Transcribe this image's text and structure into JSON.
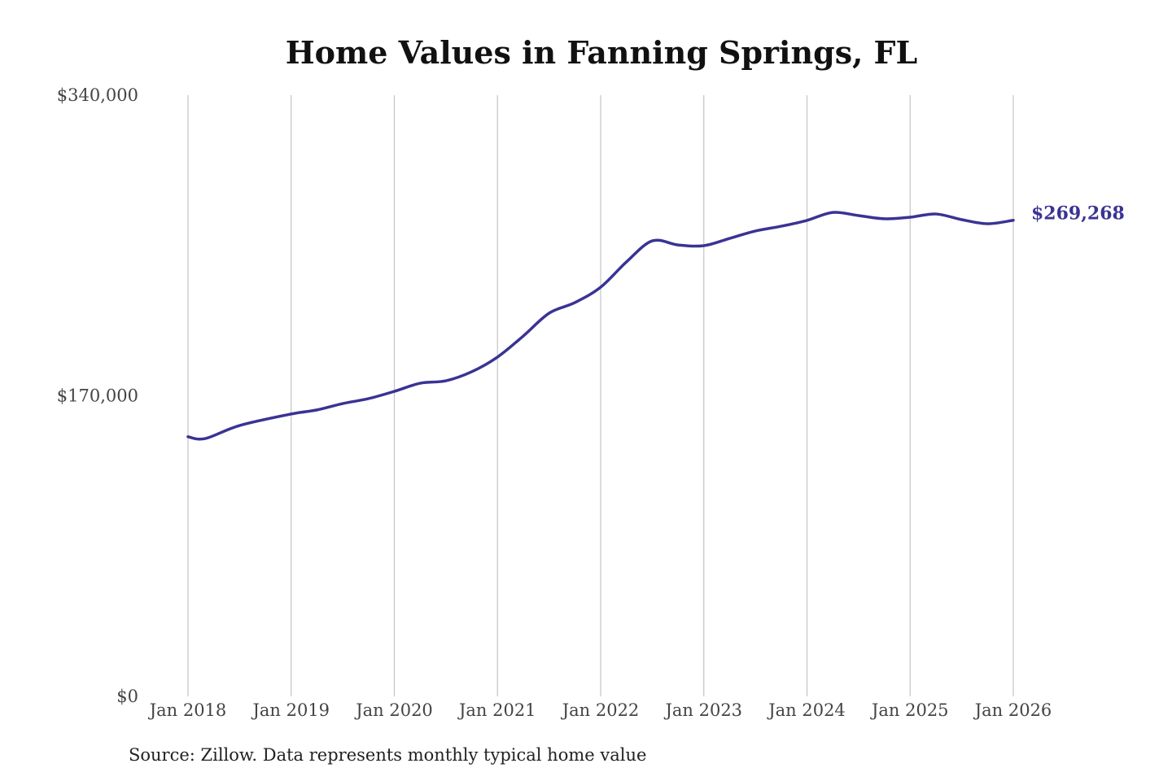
{
  "chart_data": {
    "type": "line",
    "title": "Home Values in Fanning Springs, FL",
    "xlabel": "",
    "ylabel": "",
    "ylim": [
      0,
      340000
    ],
    "yticks": [
      "$0",
      "$170,000",
      "$340,000"
    ],
    "ytick_values": [
      0,
      170000,
      340000
    ],
    "xticks": [
      "Jan 2018",
      "Jan 2019",
      "Jan 2020",
      "Jan 2021",
      "Jan 2022",
      "Jan 2023",
      "Jan 2024",
      "Jan 2025",
      "Jan 2026"
    ],
    "grid": "vertical",
    "line_color": "#3a3394",
    "end_label": "$269,268",
    "series": [
      {
        "x": [
          "2018-01",
          "2018-03",
          "2018-07",
          "2019-01",
          "2019-04",
          "2019-07",
          "2019-10",
          "2020-01",
          "2020-04",
          "2020-07",
          "2020-10",
          "2021-01",
          "2021-04",
          "2021-07",
          "2021-10",
          "2022-01",
          "2022-04",
          "2022-07",
          "2022-10",
          "2023-01",
          "2023-04",
          "2023-07",
          "2023-10",
          "2024-01",
          "2024-04",
          "2024-07",
          "2024-10",
          "2025-01",
          "2025-04",
          "2025-07",
          "2025-10",
          "2026-01"
        ],
        "values": [
          146800,
          145800,
          153200,
          159700,
          162000,
          165600,
          168400,
          172500,
          177100,
          178500,
          183600,
          191900,
          203800,
          216700,
          222700,
          231400,
          245700,
          257600,
          255300,
          254900,
          259000,
          263200,
          265900,
          269200,
          273700,
          271900,
          270100,
          271000,
          272800,
          269600,
          267300,
          269268
        ]
      }
    ],
    "source": "Source: Zillow. Data represents monthly typical home value"
  }
}
